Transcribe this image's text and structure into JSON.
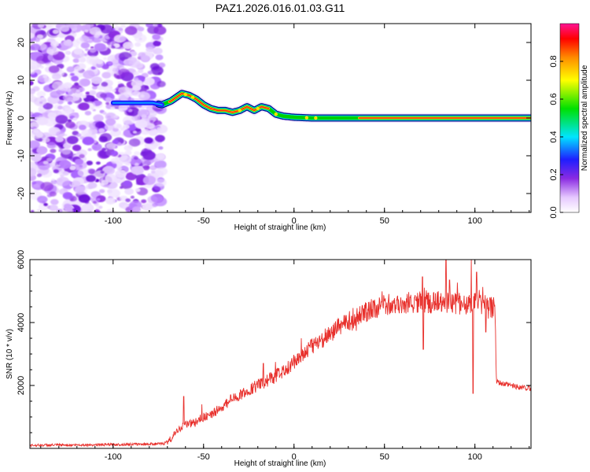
{
  "title": "PAZ1.2026.016.01.03.G11",
  "chart_data": [
    {
      "type": "heatmap",
      "xlabel": "Height of straight line (km)",
      "ylabel": "Frequency (Hz)",
      "xlim": [
        -146,
        131
      ],
      "ylim": [
        -25,
        25
      ],
      "xticks": [
        -100,
        -50,
        0,
        50,
        100
      ],
      "xtick_labels": [
        "-100",
        "-50",
        "0",
        "50",
        "100"
      ],
      "yticks": [
        -20,
        -10,
        0,
        10,
        20
      ],
      "ytick_labels": [
        "-20",
        "-10",
        "0",
        "10",
        "20"
      ],
      "noise_region_x": [
        -146,
        -73
      ],
      "ridge": {
        "x": [
          -100,
          -85,
          -78,
          -73,
          -68,
          -62,
          -58,
          -54,
          -50,
          -46,
          -42,
          -38,
          -34,
          -30,
          -26,
          -22,
          -18,
          -14,
          -10,
          -6,
          0,
          10,
          20,
          28,
          40,
          60,
          80,
          100,
          131
        ],
        "freq": [
          4,
          4,
          4,
          3.5,
          4.5,
          6.5,
          6,
          5,
          3.5,
          2.5,
          2,
          2,
          1.5,
          2,
          3,
          2,
          3,
          2.5,
          1,
          0.5,
          0.2,
          0,
          0,
          0,
          0,
          0,
          0,
          0,
          0
        ],
        "amp": [
          0.2,
          0.25,
          0.3,
          0.6,
          0.8,
          0.85,
          0.85,
          0.8,
          0.8,
          0.8,
          0.8,
          0.8,
          0.8,
          0.8,
          0.8,
          0.8,
          0.8,
          0.75,
          0.7,
          0.6,
          0.5,
          0.4,
          0.35,
          0.35,
          0.95,
          0.95,
          0.95,
          0.95,
          0.95
        ]
      },
      "colorbar": {
        "label": "Normalized spectral amplitude",
        "range": [
          0,
          1
        ],
        "ticks": [
          0.0,
          0.2,
          0.4,
          0.6,
          0.8
        ],
        "tick_labels": [
          "0.0",
          "0.2",
          "0.4",
          "0.6",
          "0.8"
        ]
      }
    },
    {
      "type": "line",
      "xlabel": "Height of straight line (km)",
      "ylabel": "SNR (10 * v/v)",
      "xlim": [
        -146,
        131
      ],
      "ylim": [
        0,
        6000
      ],
      "xticks": [
        -100,
        -50,
        0,
        50,
        100
      ],
      "xtick_labels": [
        "-100",
        "-50",
        "0",
        "50",
        "100"
      ],
      "yticks": [
        2000,
        4000,
        6000
      ],
      "ytick_labels": [
        "2000",
        "4000",
        "6000"
      ],
      "color": "#e8302c",
      "series": [
        {
          "name": "SNR",
          "x": [
            -146,
            -120,
            -100,
            -80,
            -72,
            -68,
            -66,
            -64,
            -62,
            -60,
            -55,
            -50,
            -45,
            -40,
            -35,
            -30,
            -25,
            -20,
            -15,
            -10,
            -5,
            0,
            5,
            10,
            15,
            20,
            25,
            30,
            40,
            45,
            50,
            55,
            60,
            65,
            70,
            75,
            80,
            85,
            90,
            95,
            100,
            105,
            108,
            111,
            112,
            115,
            120,
            125,
            131
          ],
          "y": [
            100,
            110,
            120,
            140,
            150,
            300,
            450,
            600,
            700,
            750,
            800,
            1000,
            1100,
            1300,
            1500,
            1700,
            1850,
            2000,
            2150,
            2300,
            2500,
            2750,
            3000,
            3250,
            3450,
            3650,
            3850,
            4050,
            4350,
            4450,
            4550,
            4600,
            4600,
            4650,
            4650,
            4650,
            4650,
            4650,
            4600,
            4600,
            4600,
            4550,
            4500,
            4450,
            2100,
            2050,
            2000,
            1950,
            1900
          ],
          "spikes": [
            {
              "x": -61,
              "y": 1650
            },
            {
              "x": -51,
              "y": 1400
            },
            {
              "x": -35,
              "y": 1700
            },
            {
              "x": -17,
              "y": 2700
            },
            {
              "x": 4,
              "y": 3500
            },
            {
              "x": 71,
              "y": 5450
            },
            {
              "x": 71.5,
              "y": 3150
            },
            {
              "x": 84,
              "y": 6000
            },
            {
              "x": 86,
              "y": 5350
            },
            {
              "x": 98,
              "y": 6000
            },
            {
              "x": 99,
              "y": 1750
            },
            {
              "x": 101,
              "y": 5600
            },
            {
              "x": 106,
              "y": 3700
            }
          ]
        }
      ]
    }
  ]
}
